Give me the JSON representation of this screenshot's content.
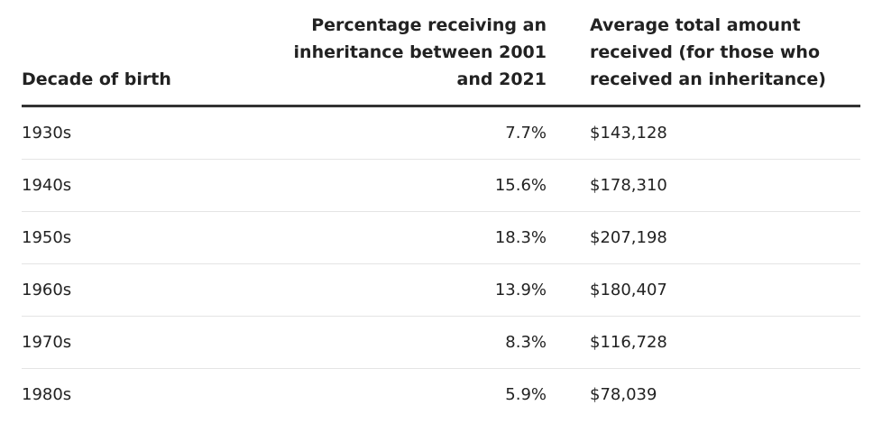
{
  "chart_data": {
    "type": "table",
    "columns": [
      "Decade of birth",
      "Percentage receiving an inheritance between 2001 and 2021",
      "Average total amount received (for those who received an inheritance)"
    ],
    "rows": [
      {
        "decade": "1930s",
        "percentage": "7.7%",
        "amount": "$143,128"
      },
      {
        "decade": "1940s",
        "percentage": "15.6%",
        "amount": "$178,310"
      },
      {
        "decade": "1950s",
        "percentage": "18.3%",
        "amount": "$207,198"
      },
      {
        "decade": "1960s",
        "percentage": "13.9%",
        "amount": "$180,407"
      },
      {
        "decade": "1970s",
        "percentage": "8.3%",
        "amount": "$116,728"
      },
      {
        "decade": "1980s",
        "percentage": "5.9%",
        "amount": "$78,039"
      }
    ]
  }
}
